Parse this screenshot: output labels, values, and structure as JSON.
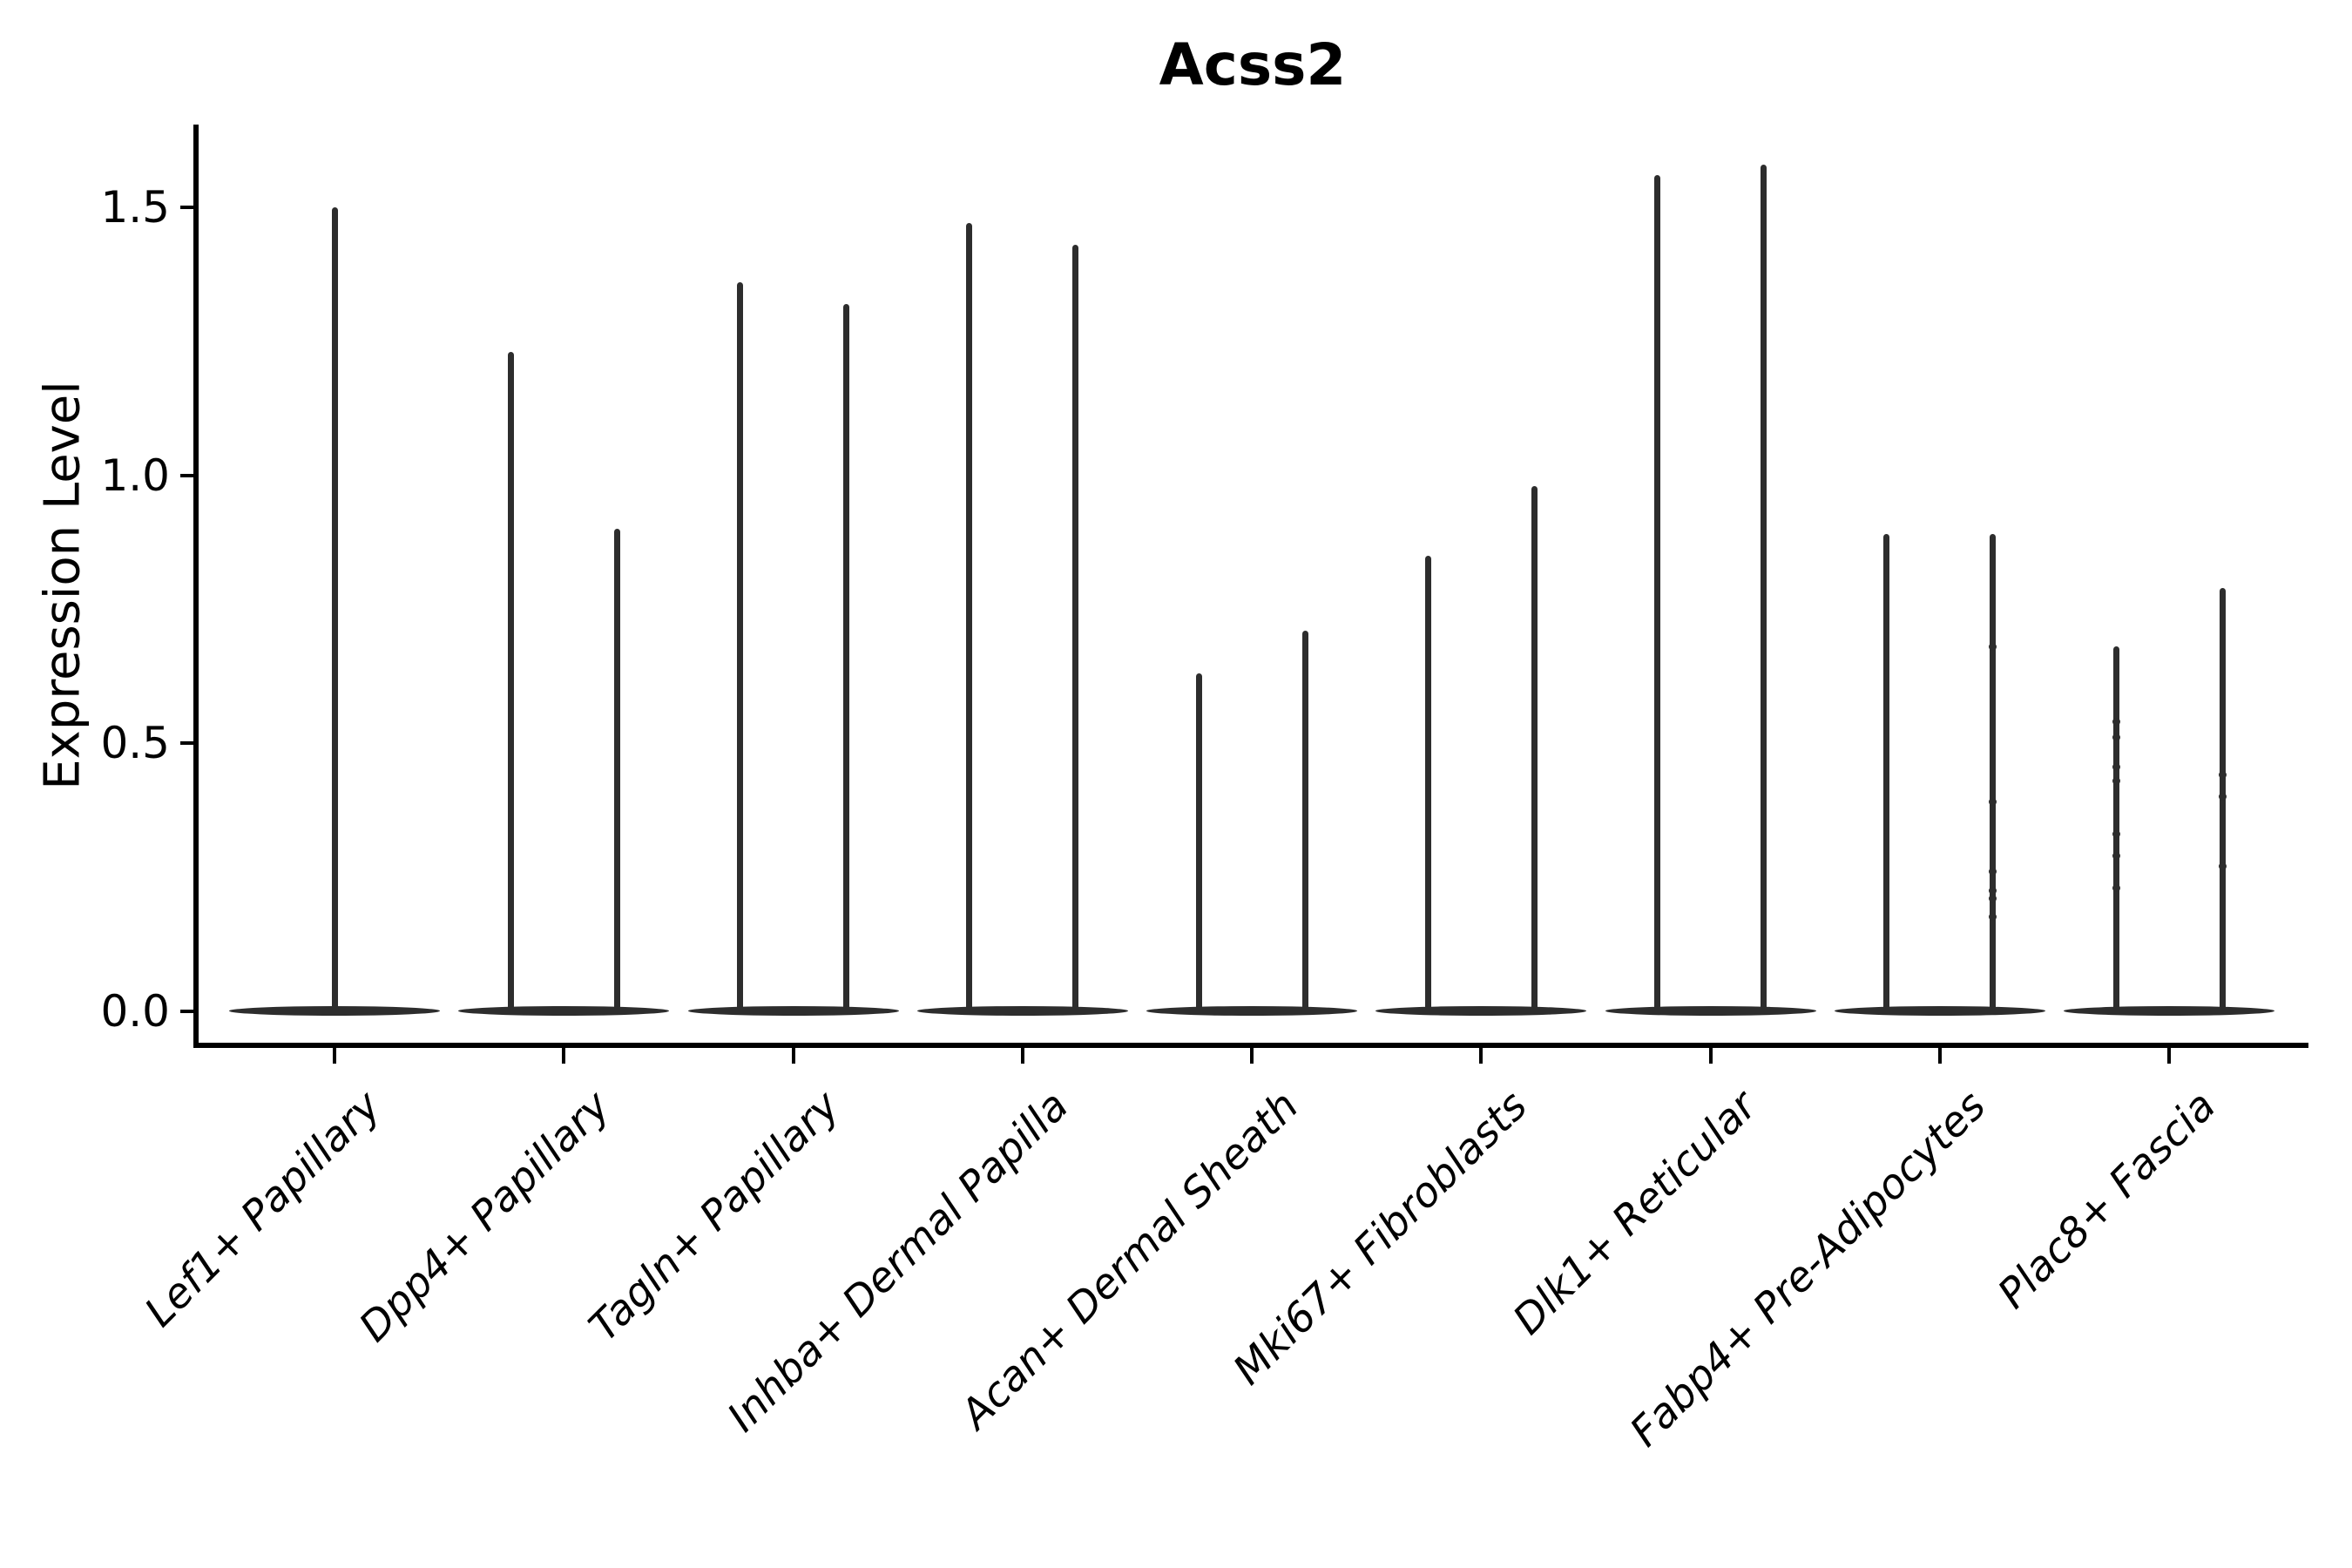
{
  "figure": {
    "title": "Acss2",
    "background": "#ffffff"
  },
  "chart_data": {
    "type": "violin",
    "title": "Acss2",
    "xlabel": "",
    "ylabel": "Expression Level",
    "ylim": [
      0,
      1.66
    ],
    "ytick_values": [
      0.0,
      0.5,
      1.0,
      1.5
    ],
    "ytick_labels": [
      "0.0",
      "0.5",
      "1.0",
      "1.5"
    ],
    "grid": false,
    "legend": false,
    "categories": [
      "Lef1+ Papillary",
      "Dpp4+ Papillary",
      "Tagln+ Papillary",
      "Inhba+ Dermal Papilla",
      "Acan+ Dermal Sheath",
      "Mki67+ Fibroblasts",
      "Dlk1+ Reticular",
      "Fabp4+ Pre-Adipocytes",
      "Plac8+ Fascia"
    ],
    "groups": [
      {
        "label": "Lef1+ Papillary",
        "violins": [
          {
            "max": 1.5,
            "dots": [],
            "full_width": true
          }
        ]
      },
      {
        "label": "Dpp4+ Papillary",
        "violins": [
          {
            "max": 1.23,
            "dots": []
          },
          {
            "max": 0.9,
            "dots": []
          }
        ]
      },
      {
        "label": "Tagln+ Papillary",
        "violins": [
          {
            "max": 1.36,
            "dots": []
          },
          {
            "max": 1.32,
            "dots": []
          }
        ]
      },
      {
        "label": "Inhba+ Dermal Papilla",
        "violins": [
          {
            "max": 1.47,
            "dots": []
          },
          {
            "max": 1.43,
            "dots": []
          }
        ]
      },
      {
        "label": "Acan+ Dermal Sheath",
        "violins": [
          {
            "max": 0.63,
            "dots": []
          },
          {
            "max": 0.71,
            "dots": []
          }
        ]
      },
      {
        "label": "Mki67+ Fibroblasts",
        "violins": [
          {
            "max": 0.85,
            "dots": []
          },
          {
            "max": 0.98,
            "dots": []
          }
        ]
      },
      {
        "label": "Dlk1+ Reticular",
        "violins": [
          {
            "max": 1.56,
            "dots": []
          },
          {
            "max": 1.58,
            "dots": []
          }
        ]
      },
      {
        "label": "Fabp4+ Pre-Adipocytes",
        "violins": [
          {
            "max": 0.89,
            "dots": []
          },
          {
            "max": 0.89,
            "dots": [
              0.68,
              0.39,
              0.26,
              0.225,
              0.21,
              0.175
            ]
          }
        ]
      },
      {
        "label": "Plac8+ Fascia",
        "violins": [
          {
            "max": 0.68,
            "dots": [
              0.54,
              0.51,
              0.455,
              0.43,
              0.33,
              0.29,
              0.23
            ]
          },
          {
            "max": 0.79,
            "dots": [
              0.44,
              0.4,
              0.27
            ]
          }
        ]
      }
    ],
    "style": {
      "violin_color": "#2d2d2d",
      "axis_color": "#000000",
      "text_color": "#000000",
      "background": "#ffffff"
    }
  }
}
